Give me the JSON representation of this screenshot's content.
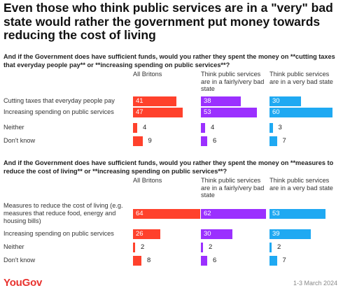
{
  "title": "Even those who think public services are in a \"very\" bad state would rather the government put money towards reducing the cost of living",
  "colors": {
    "All Britons": "#ff412c",
    "fairly_very": "#9b30ff",
    "very": "#1fa9f2"
  },
  "chart_data": [
    {
      "type": "bar",
      "orientation": "horizontal",
      "question": "And if the Government does have sufficient funds, would you rather they spent the money on **cutting taxes that everyday people pay** or **increasing spending on public services**?",
      "categories": [
        "Cutting taxes that everyday people pay",
        "Increasing spending on public services",
        "Neither",
        "Don't know"
      ],
      "series": [
        {
          "name": "All Britons",
          "values": [
            41,
            47,
            4,
            9
          ]
        },
        {
          "name": "Think public services are in a fairly/very bad state",
          "values": [
            38,
            53,
            4,
            6
          ]
        },
        {
          "name": "Think public services are in a very bad state",
          "values": [
            30,
            60,
            3,
            7
          ]
        }
      ],
      "xlim": [
        0,
        100
      ]
    },
    {
      "type": "bar",
      "orientation": "horizontal",
      "question": "And if the Government does have sufficient funds, would you rather they spent the money on **measures to reduce the cost of living** or **increasing spending on public services**?",
      "categories": [
        "Measures to reduce the cost of living (e.g. measures that reduce food, energy and housing bills)",
        "Increasing spending on public services",
        "Neither",
        "Don't know"
      ],
      "series": [
        {
          "name": "All Britons",
          "values": [
            64,
            26,
            2,
            8
          ]
        },
        {
          "name": "Think public services are in a fairly/very bad state",
          "values": [
            62,
            30,
            2,
            6
          ]
        },
        {
          "name": "Think public services are in a very bad state",
          "values": [
            53,
            39,
            2,
            7
          ]
        }
      ],
      "xlim": [
        0,
        100
      ]
    }
  ],
  "footer": {
    "logo": "YouGov",
    "date": "1-3 March 2024"
  }
}
